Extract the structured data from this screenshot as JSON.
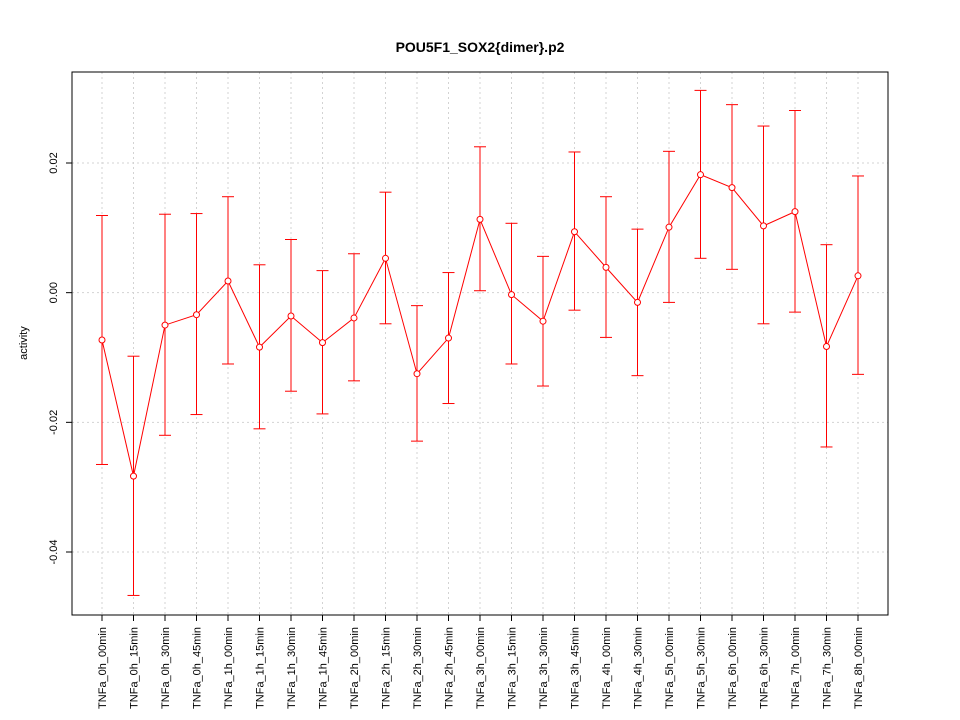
{
  "chart_data": {
    "type": "line",
    "title": "POU5F1_SOX2{dimer}.p2",
    "xlabel": "",
    "ylabel": "activity",
    "ylim": [
      -0.05,
      0.035
    ],
    "yticks": [
      -0.04,
      -0.02,
      0.0,
      0.02
    ],
    "ytick_labels": [
      "-0.04",
      "-0.02",
      "0.00",
      "0.02"
    ],
    "grid": true,
    "legend": "none",
    "colors": {
      "series": "#ff0000",
      "grid": "#d3d3d3",
      "axis": "#000000"
    },
    "categories": [
      "TNFa_0h_00min",
      "TNFa_0h_15min",
      "TNFa_0h_30min",
      "TNFa_0h_45min",
      "TNFa_1h_00min",
      "TNFa_1h_15min",
      "TNFa_1h_30min",
      "TNFa_1h_45min",
      "TNFa_2h_00min",
      "TNFa_2h_15min",
      "TNFa_2h_30min",
      "TNFa_2h_45min",
      "TNFa_3h_00min",
      "TNFa_3h_15min",
      "TNFa_3h_30min",
      "TNFa_3h_45min",
      "TNFa_4h_00min",
      "TNFa_4h_30min",
      "TNFa_5h_00min",
      "TNFa_5h_30min",
      "TNFa_6h_00min",
      "TNFa_6h_30min",
      "TNFa_7h_00min",
      "TNFa_7h_30min",
      "TNFa_8h_00min"
    ],
    "series": [
      {
        "values": [
          -0.0073,
          -0.0283,
          -0.005,
          -0.0034,
          0.0018,
          -0.0084,
          -0.0036,
          -0.0077,
          -0.0039,
          0.0053,
          -0.0125,
          -0.007,
          0.0113,
          -0.0003,
          -0.0044,
          0.0094,
          0.0039,
          -0.0015,
          0.0101,
          0.0182,
          0.0162,
          0.0103,
          0.0125,
          -0.0083,
          0.0026
        ],
        "upper": [
          0.0119,
          -0.0098,
          0.0121,
          0.0122,
          0.0148,
          0.0043,
          0.0082,
          0.0034,
          0.006,
          0.0155,
          -0.002,
          0.0031,
          0.0225,
          0.0107,
          0.0056,
          0.0217,
          0.0148,
          0.0098,
          0.0218,
          0.0312,
          0.029,
          0.0257,
          0.0281,
          0.0074,
          0.018
        ],
        "lower": [
          -0.0265,
          -0.0467,
          -0.022,
          -0.0188,
          -0.011,
          -0.021,
          -0.0152,
          -0.0187,
          -0.0136,
          -0.0048,
          -0.0229,
          -0.0171,
          0.0003,
          -0.011,
          -0.0144,
          -0.0027,
          -0.0069,
          -0.0128,
          -0.0015,
          0.0053,
          0.0036,
          -0.0048,
          -0.003,
          -0.0238,
          -0.0126
        ]
      }
    ]
  }
}
